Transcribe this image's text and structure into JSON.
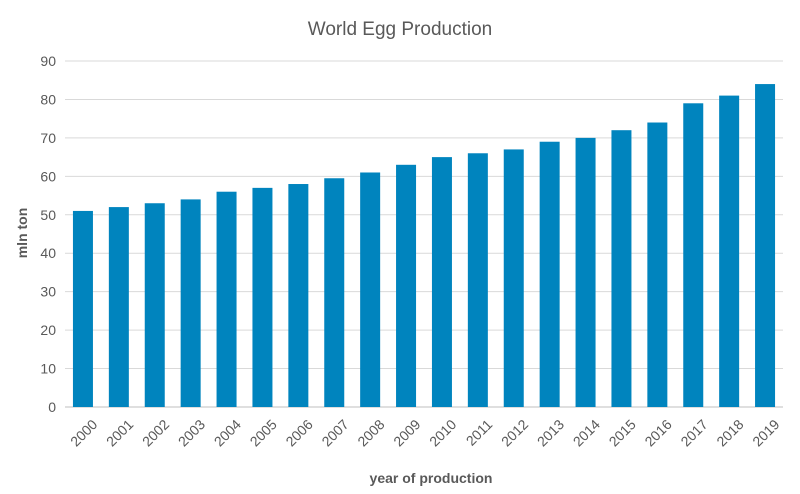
{
  "chart_data": {
    "type": "bar",
    "title": "World Egg Production",
    "xlabel": "year of production",
    "ylabel": "mln ton",
    "categories": [
      "2000",
      "2001",
      "2002",
      "2003",
      "2004",
      "2005",
      "2006",
      "2007",
      "2008",
      "2009",
      "2010",
      "2011",
      "2012",
      "2013",
      "2014",
      "2015",
      "2016",
      "2017",
      "2018",
      "2019"
    ],
    "values": [
      51,
      52,
      53,
      54,
      56,
      57,
      58,
      59.5,
      61,
      63,
      65,
      66,
      67,
      69,
      70,
      72,
      74,
      79,
      81,
      84
    ],
    "ylim": [
      0,
      90
    ],
    "yticks": [
      0,
      10,
      20,
      30,
      40,
      50,
      60,
      70,
      80,
      90
    ],
    "grid": true,
    "legend": "none",
    "bar_color": "#0084be"
  }
}
